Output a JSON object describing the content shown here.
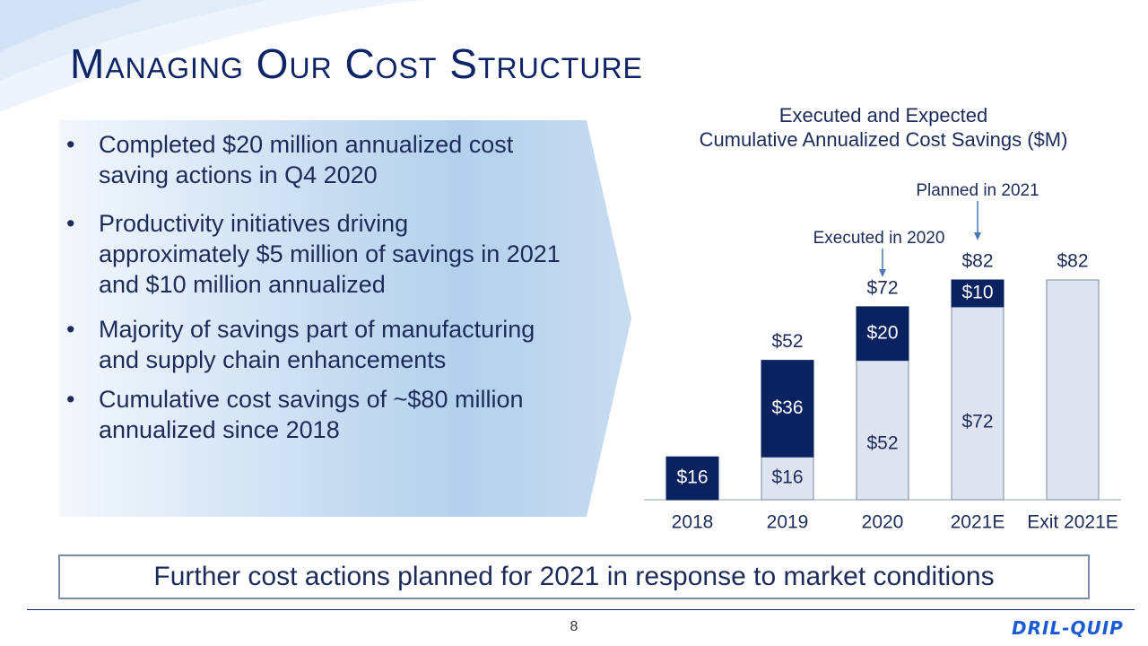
{
  "slide": {
    "title": "Managing Our Cost Structure",
    "page_number": "8",
    "logo_text": "DRIL-QUIP",
    "callout": "Further cost actions planned for 2021 in response to market conditions"
  },
  "bullets": [
    "Completed $20 million annualized cost saving actions in Q4 2020",
    "Productivity initiatives driving approximately $5 million of savings in 2021 and $10 million annualized",
    "Majority of savings part of manufacturing and supply chain enhancements",
    "Cumulative cost savings of ~$80 million annualized since 2018"
  ],
  "colors": {
    "navy": "#0b2260",
    "light_fill": "#dde4ef",
    "text": "#1d2b5a",
    "accent_blue": "#4a77b4"
  },
  "chart_data": {
    "type": "bar",
    "stacked": true,
    "title_lines": [
      "Executed and Expected",
      "Cumulative Annualized Cost Savings ($M)"
    ],
    "categories": [
      "2018",
      "2019",
      "2020",
      "2021E",
      "Exit 2021E"
    ],
    "series": [
      {
        "role": "prior",
        "values": [
          0,
          16,
          52,
          72,
          82
        ],
        "labels": [
          "",
          "$16",
          "$52",
          "$72",
          ""
        ],
        "color": "#dde4ef"
      },
      {
        "role": "new",
        "values": [
          16,
          36,
          20,
          10,
          0
        ],
        "labels": [
          "$16",
          "$36",
          "$20",
          "$10",
          ""
        ],
        "color": "#0b2260"
      }
    ],
    "totals": [
      "",
      "$52",
      "$72",
      "$82",
      "$82"
    ],
    "annotations": [
      {
        "text": "Executed in  2020",
        "category": "2020"
      },
      {
        "text": "Planned in 2021",
        "category": "2021E"
      }
    ],
    "ylim": [
      0,
      82
    ],
    "grid": false,
    "legend": "none"
  }
}
